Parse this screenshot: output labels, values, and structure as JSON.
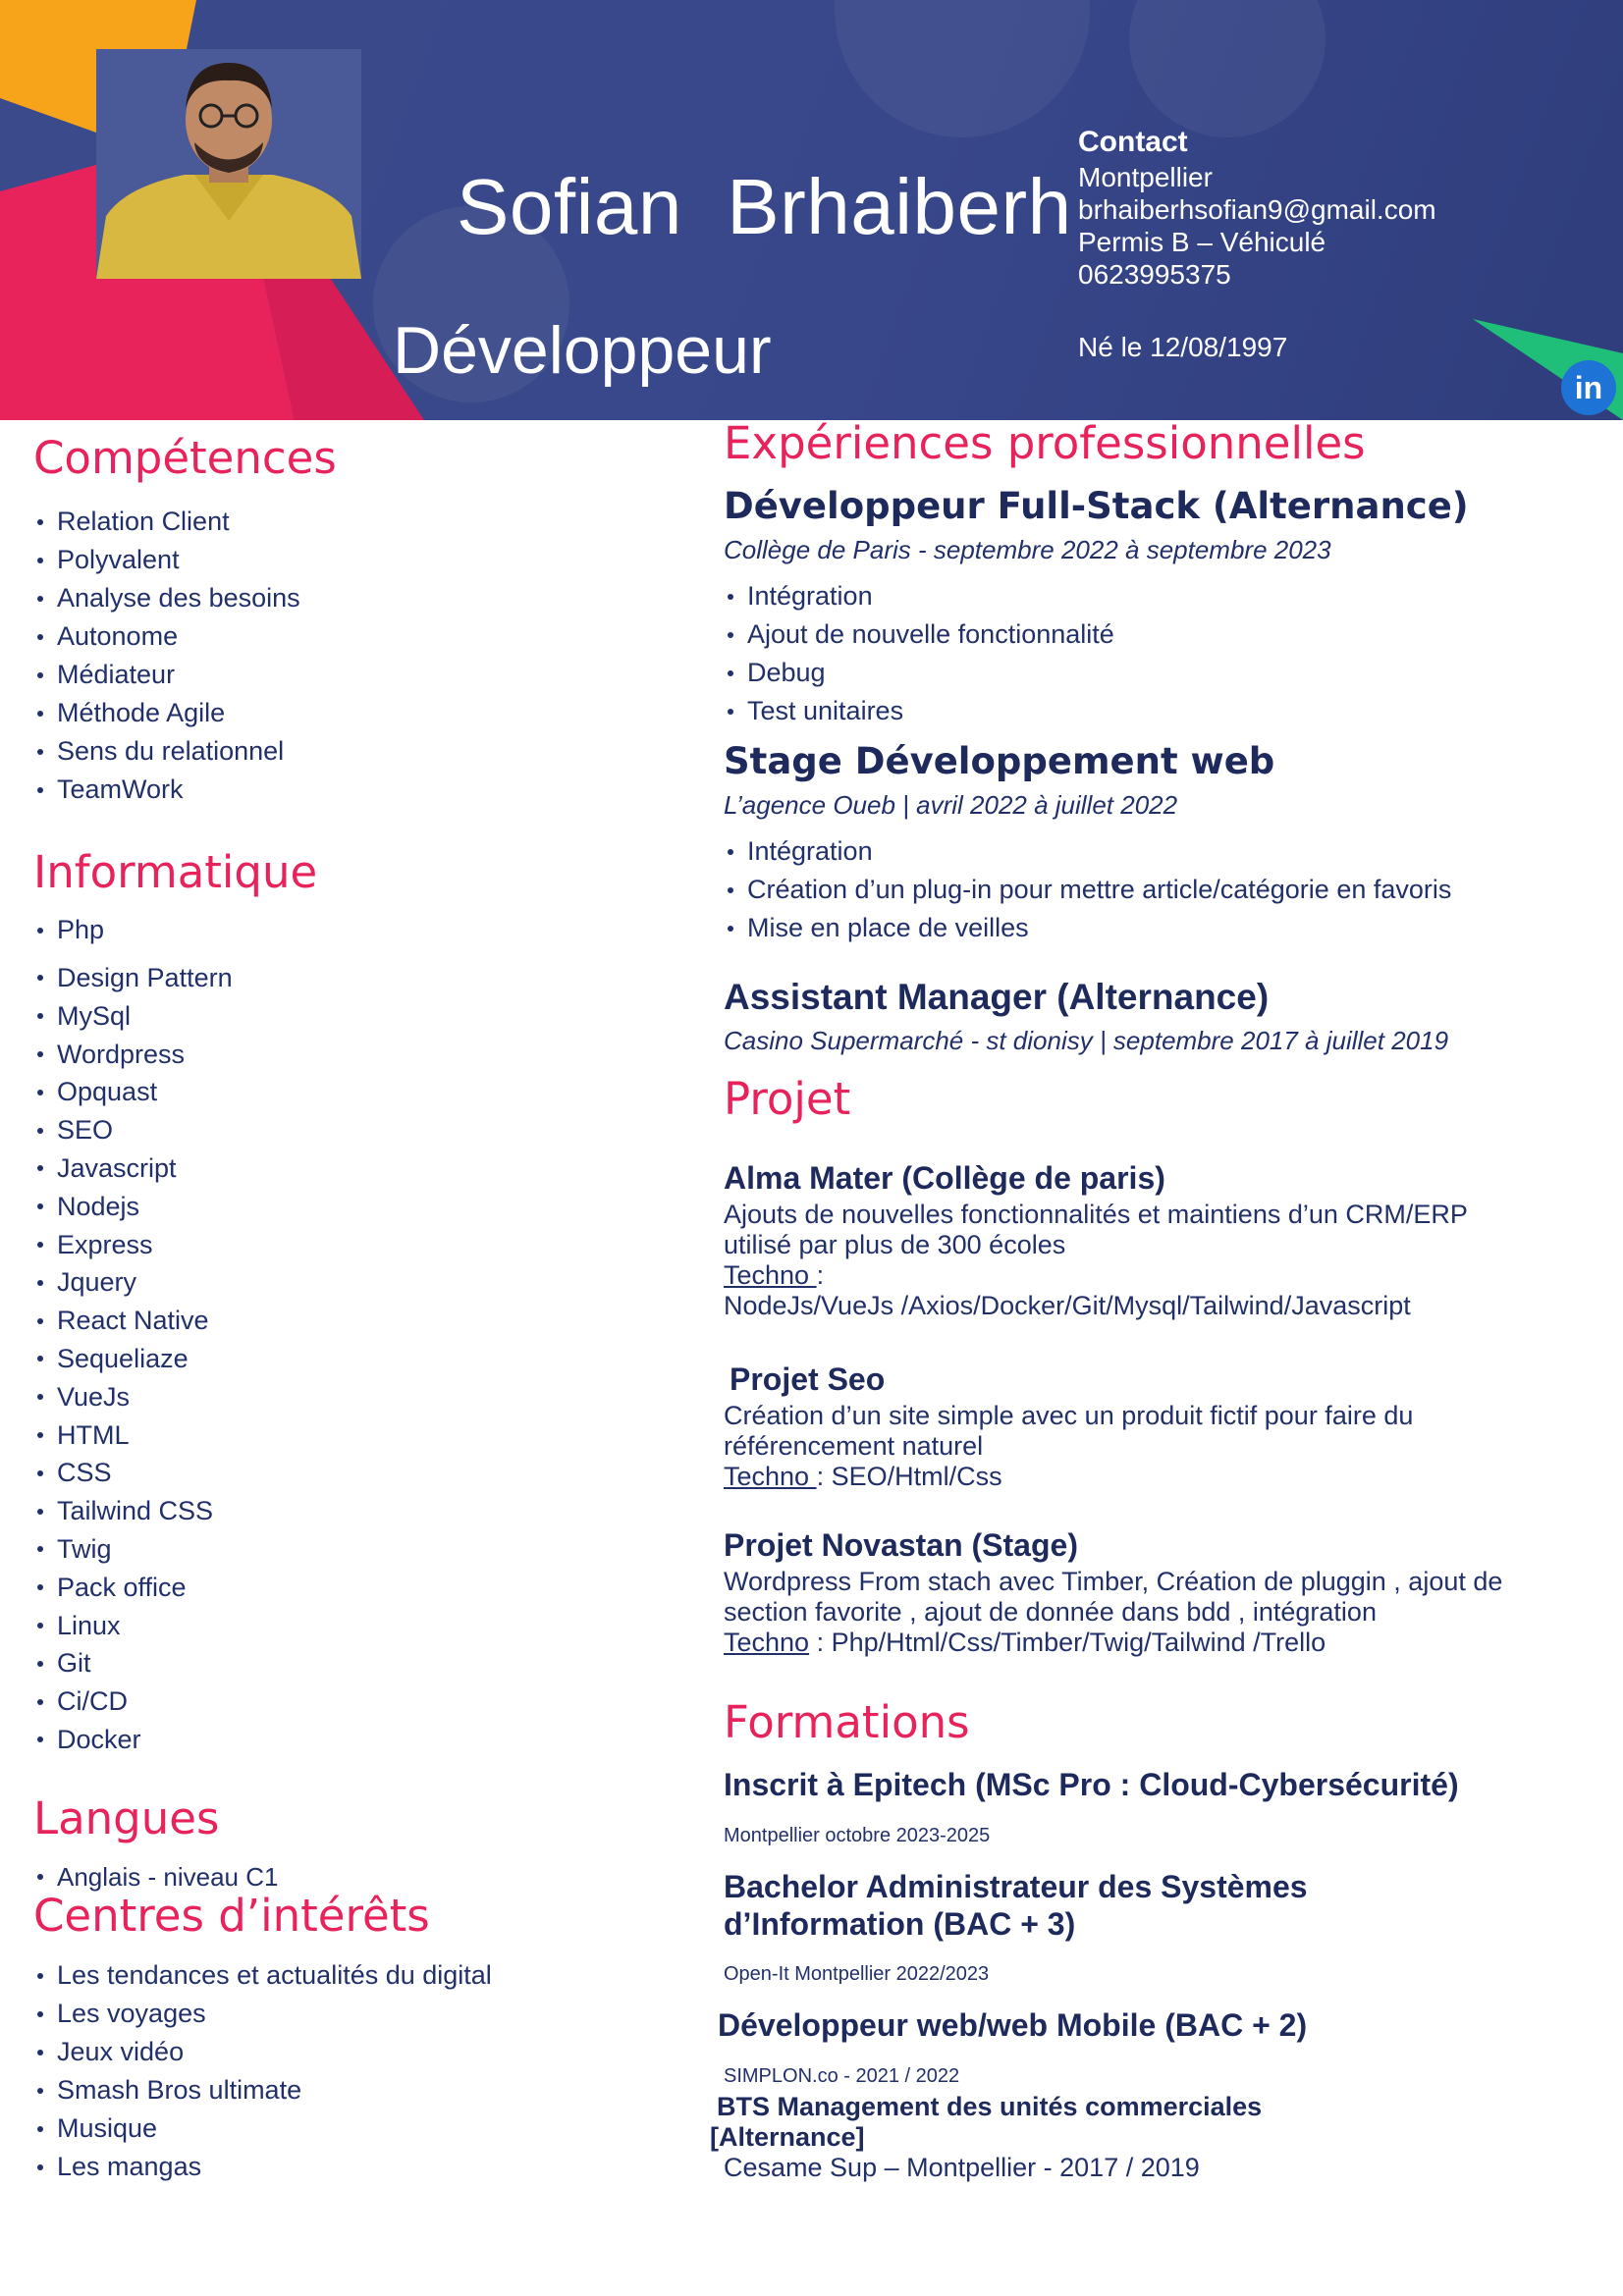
{
  "header": {
    "name": "Sofian  Brhaiberh",
    "role": "Développeur",
    "contact_title": "Contact",
    "contact_lines": [
      "Montpellier",
      "brhaiberhsofian9@gmail.com",
      "Permis B – Véhiculé",
      "0623995375"
    ],
    "birth": "Né le 12/08/1997",
    "linkedin_label": "in",
    "colors": {
      "background": "#38478a",
      "accent_pink": "#e8235b",
      "accent_orange": "#f7a41b",
      "accent_green": "#1fbf7a"
    }
  },
  "competences": {
    "title": "Compétences",
    "items": [
      "Relation Client",
      "Polyvalent",
      "Analyse des besoins",
      "Autonome",
      "Médiateur",
      "Méthode Agile",
      "Sens du relationnel",
      "TeamWork"
    ]
  },
  "informatique": {
    "title": "Informatique",
    "first": "Php",
    "items": [
      "Design Pattern",
      "MySql",
      "Wordpress",
      "Opquast",
      "SEO",
      "Javascript",
      "Nodejs",
      "Express",
      "Jquery",
      "React Native",
      "Sequeliaze",
      "VueJs",
      "HTML",
      "CSS",
      "Tailwind CSS",
      "Twig",
      "Pack office",
      "Linux",
      "Git",
      "Ci/CD",
      "Docker"
    ]
  },
  "langues": {
    "title": "Langues",
    "items": [
      "Anglais - niveau C1"
    ]
  },
  "interets": {
    "title": "Centres d’intérêts",
    "items": [
      "Les tendances et actualités du digital",
      "Les voyages",
      "Jeux vidéo",
      "Smash Bros ultimate",
      "Musique",
      "Les mangas"
    ]
  },
  "experiences": {
    "title": "Expériences  professionnelles",
    "jobs": [
      {
        "title": "Développeur Full-Stack (Alternance)",
        "sub": "Collège de Paris - septembre 2022 à septembre 2023",
        "items": [
          "Intégration",
          "Ajout de nouvelle fonctionnalité",
          "Debug",
          "Test unitaires"
        ]
      },
      {
        "title": "Stage Développement web",
        "sub": "L’agence Oueb |  avril 2022 à juillet 2022",
        "items": [
          "Intégration",
          "Création d’un plug-in pour mettre article/catégorie  en favoris",
          "Mise en place de veilles"
        ]
      },
      {
        "title": "Assistant Manager (Alternance)",
        "sub": "Casino Supermarché - st dionisy  | septembre 2017 à juillet 2019"
      }
    ]
  },
  "projets": {
    "title": "Projet",
    "items": [
      {
        "title": "Alma Mater (Collège de paris)",
        "desc1": "Ajouts de nouvelles fonctionnalités et maintiens d’un CRM/ERP",
        "desc2": "utilisé par plus de 300 écoles",
        "techno_label": "Techno ",
        "techno_sep": ":",
        "techno": "NodeJs/VueJs /Axios/Docker/Git/Mysql/Tailwind/Javascript"
      },
      {
        "title": "Projet Seo",
        "desc1": "Création d’un site simple avec un produit fictif pour faire du",
        "desc2": "référencement naturel",
        "techno_label": "Techno ",
        "techno": ": SEO/Html/Css"
      },
      {
        "title": "Projet Novastan (Stage)",
        "desc1": " Wordpress From stach avec Timber, Création de pluggin , ajout de",
        "desc2": "section favorite , ajout de donnée dans bdd , intégration",
        "techno_label": "Techno",
        "techno": " : Php/Html/Css/Timber/Twig/Tailwind /Trello"
      }
    ]
  },
  "formations": {
    "title": "Formations",
    "items": [
      {
        "title": "Inscrit à Epitech (MSc Pro : Cloud-Cybersécurité)",
        "sub": "Montpellier octobre 2023-2025"
      },
      {
        "title1": "Bachelor Administrateur des Systèmes",
        "title2": "d’Information (BAC + 3)",
        "sub": "Open-It Montpellier 2022/2023"
      },
      {
        "title": "Développeur web/web Mobile (BAC + 2)",
        "sub": "SIMPLON.co - 2021 / 2022"
      },
      {
        "title1": "BTS Management des unités commerciales",
        "title2": "[Alternance]",
        "sub": "Cesame Sup – Montpellier  -  2017 / 2019"
      }
    ]
  }
}
